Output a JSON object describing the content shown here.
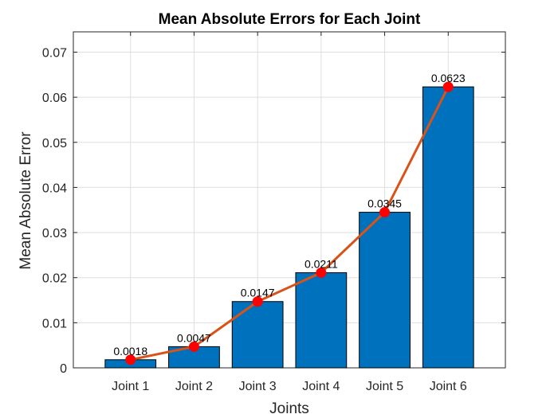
{
  "chart_data": {
    "type": "bar",
    "title": "Mean Absolute Errors for Each Joint",
    "xlabel": "Joints",
    "ylabel": "Mean Absolute Error",
    "categories": [
      "Joint 1",
      "Joint 2",
      "Joint 3",
      "Joint 4",
      "Joint 5",
      "Joint 6"
    ],
    "values": [
      0.0018,
      0.0047,
      0.0147,
      0.0211,
      0.0345,
      0.0623
    ],
    "data_labels": [
      "0.0018",
      "0.0047",
      "0.0147",
      "0.0211",
      "0.0345",
      "0.0623"
    ],
    "overlay_line": {
      "values": [
        0.0018,
        0.0047,
        0.0147,
        0.0211,
        0.0345,
        0.0623
      ]
    },
    "ylim": [
      0,
      0.0745
    ],
    "yticks": [
      0,
      0.01,
      0.02,
      0.03,
      0.04,
      0.05,
      0.06,
      0.07
    ],
    "ytick_labels": [
      "0",
      "0.01",
      "0.02",
      "0.03",
      "0.04",
      "0.05",
      "0.06",
      "0.07"
    ],
    "grid": true,
    "colors": {
      "bar": "#0072BD",
      "line": "#D95319",
      "marker": "#FF0000"
    }
  }
}
